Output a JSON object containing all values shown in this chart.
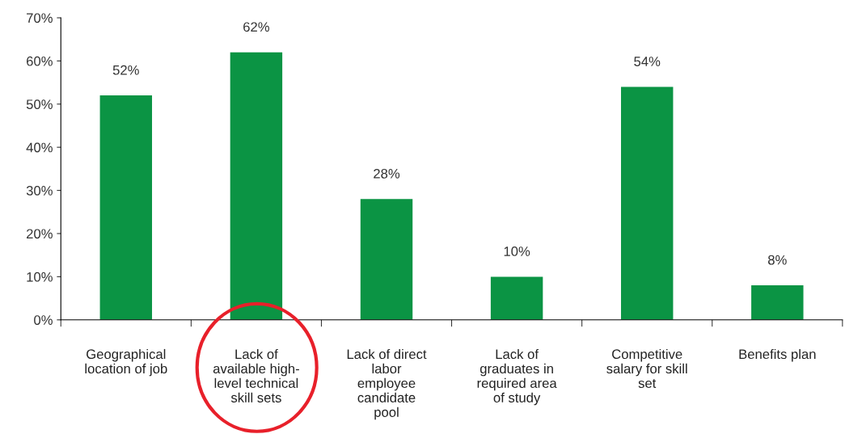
{
  "chart_data": {
    "type": "bar",
    "categories": [
      "Geographical\nlocation of job",
      "Lack of\navailable high-\nlevel technical\nskill sets",
      "Lack of direct\nlabor\nemployee\ncandidate\npool",
      "Lack of\ngraduates in\nrequired area\nof study",
      "Competitive\nsalary for skill\nset",
      "Benefits plan"
    ],
    "values": [
      52,
      62,
      28,
      10,
      54,
      8
    ],
    "value_labels": [
      "52%",
      "62%",
      "28%",
      "10%",
      "54%",
      "8%"
    ],
    "color": "#0b9444",
    "ylim": [
      0,
      70
    ],
    "yticks": [
      {
        "value": 0,
        "label": "0%"
      },
      {
        "value": 10,
        "label": "10%"
      },
      {
        "value": 20,
        "label": "20%"
      },
      {
        "value": 30,
        "label": "30%"
      },
      {
        "value": 40,
        "label": "40%"
      },
      {
        "value": 50,
        "label": "50%"
      },
      {
        "value": 60,
        "label": "60%"
      },
      {
        "value": 70,
        "label": "70%"
      }
    ],
    "grid": false
  }
}
